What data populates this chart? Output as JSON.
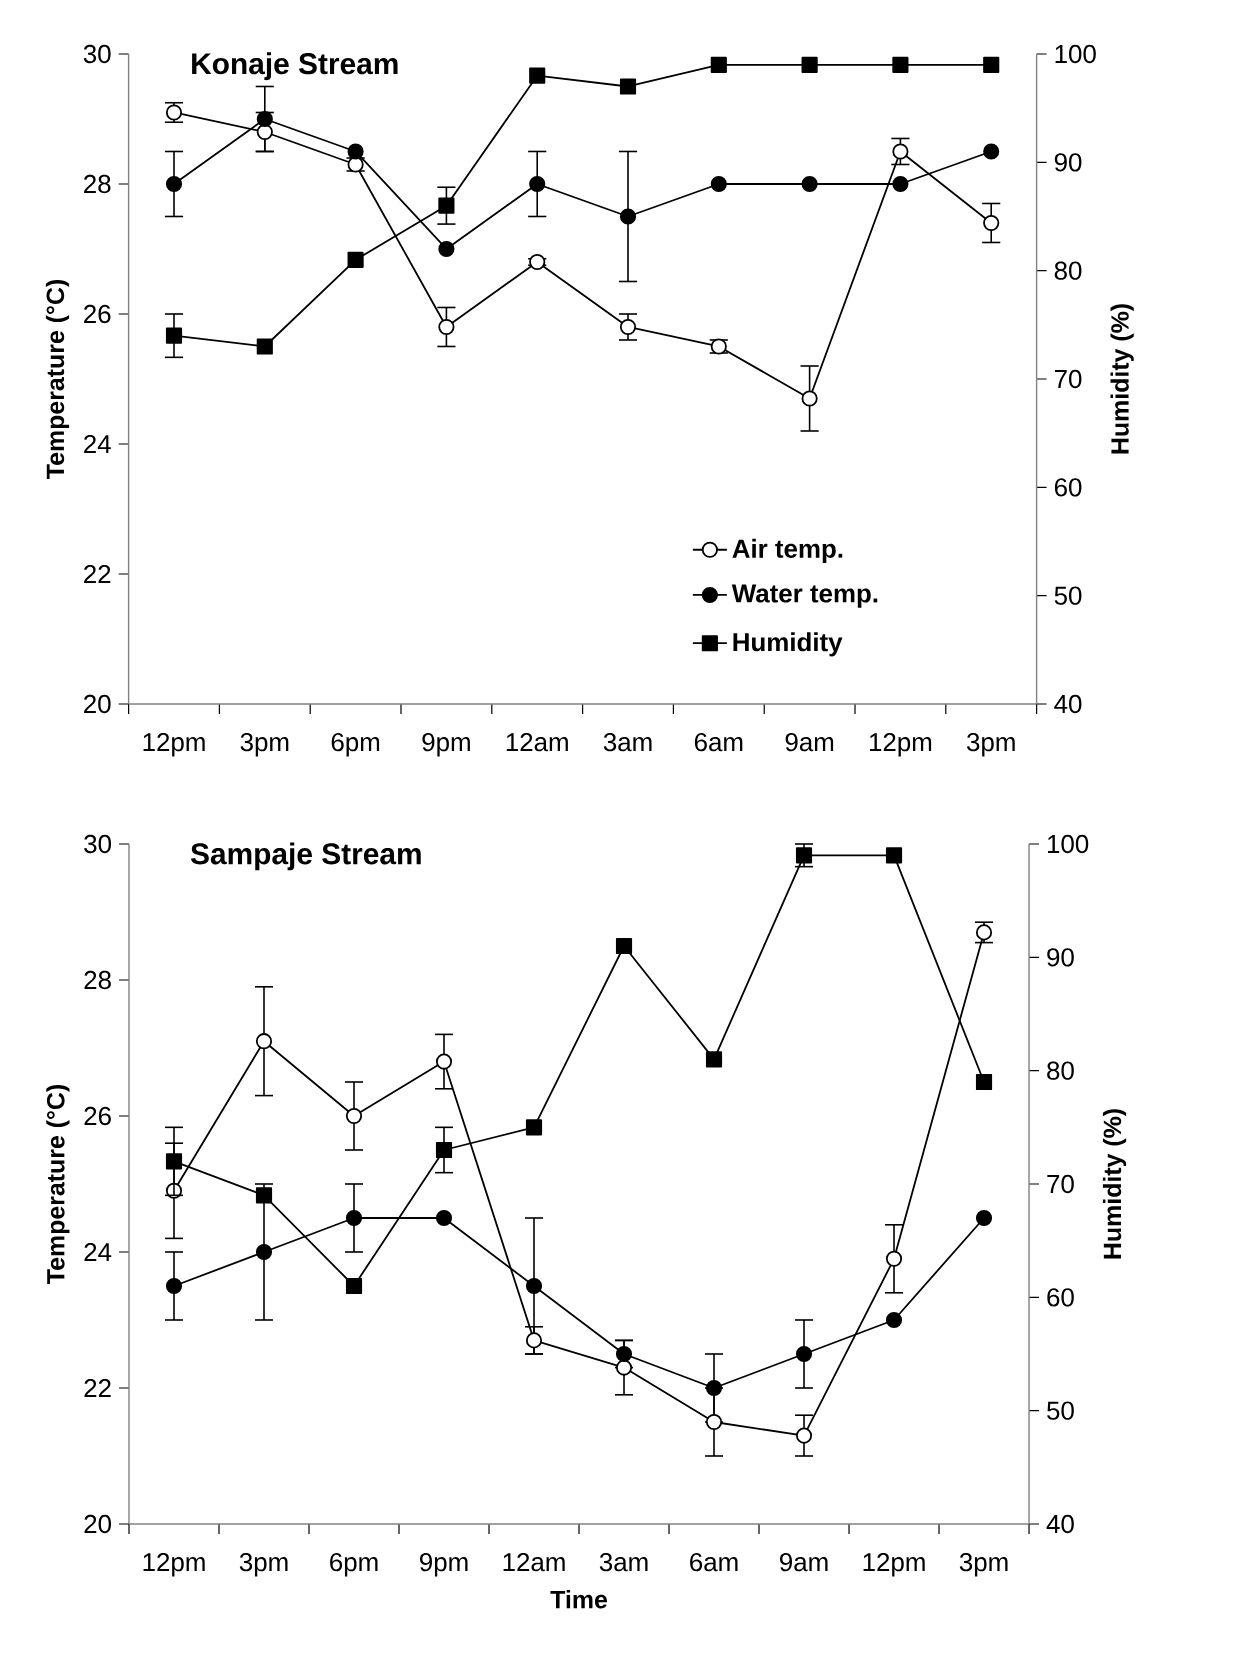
{
  "chart_data": [
    {
      "type": "line",
      "title": "Konaje Stream",
      "ylabel": "Temperature (°C)",
      "y2label": "Humidity (%)",
      "categories": [
        "12pm",
        "3pm",
        "6pm",
        "9pm",
        "12am",
        "3am",
        "6am",
        "9am",
        "12pm",
        "3pm"
      ],
      "series": [
        {
          "name": "Air temp.",
          "color": "#000000",
          "marker": "circle",
          "values": [
            29.1,
            28.8,
            28.3,
            25.8,
            26.8,
            25.8,
            25.5,
            24.7,
            28.5,
            27.4
          ],
          "errors": [
            0.15,
            0.3,
            0.1,
            0.3,
            0.05,
            0.2,
            0.1,
            0.5,
            0.2,
            0.3
          ]
        },
        {
          "name": "Water temp.",
          "color": "#000000",
          "marker": "circle",
          "values": [
            28.0,
            29.0,
            28.5,
            27.0,
            28.0,
            27.5,
            28.0,
            28.0,
            28.0,
            28.5
          ],
          "errors": [
            0.5,
            0.5,
            null,
            null,
            0.5,
            1.0,
            null,
            null,
            null,
            null
          ]
        },
        {
          "name": "Humidity",
          "color": "#000000",
          "marker": "square",
          "axis": "y2",
          "values": [
            74,
            73,
            81,
            86,
            98,
            97,
            99,
            99,
            99,
            99
          ],
          "errors": [
            2,
            null,
            null,
            1.7,
            null,
            null,
            null,
            null,
            null,
            null
          ]
        }
      ],
      "ylim": [
        20,
        30
      ],
      "yticks": [
        20,
        22,
        24,
        26,
        28,
        30
      ],
      "y2lim": [
        40,
        100
      ],
      "y2ticks": [
        40,
        50,
        60,
        70,
        80,
        90,
        100
      ],
      "legend": "bottom right",
      "line_style": "solid"
    },
    {
      "type": "line",
      "title": "Sampaje Stream",
      "xlabel": "Time",
      "ylabel": "Temperature (°C)",
      "y2label": "Humidity (%)",
      "categories": [
        "12pm",
        "3pm",
        "6pm",
        "9pm",
        "12am",
        "3am",
        "6am",
        "9am",
        "12pm",
        "3pm"
      ],
      "series": [
        {
          "color": "#000000",
          "marker": "circle",
          "values": [
            24.9,
            27.1,
            26.0,
            26.8,
            22.7,
            22.3,
            21.5,
            21.3,
            23.9,
            28.7
          ],
          "errors": [
            0.7,
            0.8,
            0.5,
            0.4,
            0.2,
            0.4,
            0.5,
            0.3,
            0.5,
            0.15
          ]
        },
        {
          "color": "#000000",
          "marker": "circle",
          "values": [
            23.5,
            24.0,
            24.5,
            24.5,
            23.5,
            22.5,
            22.0,
            22.5,
            23.0,
            24.5
          ],
          "errors": [
            0.5,
            1.0,
            0.5,
            null,
            1.0,
            0.2,
            0.5,
            0.5,
            null,
            null
          ]
        },
        {
          "color": "#000000",
          "marker": "square",
          "axis": "y2",
          "values": [
            72,
            69,
            61,
            73,
            75,
            91,
            81,
            99,
            99,
            79
          ],
          "errors": [
            3,
            null,
            null,
            2,
            null,
            null,
            null,
            1,
            null,
            null
          ]
        }
      ],
      "ylim": [
        20,
        30
      ],
      "yticks": [
        20,
        22,
        24,
        26,
        28,
        30
      ],
      "y2lim": [
        40,
        100
      ],
      "y2ticks": [
        40,
        50,
        60,
        70,
        80,
        90,
        100
      ],
      "legend": false,
      "line_style": "solid"
    }
  ]
}
